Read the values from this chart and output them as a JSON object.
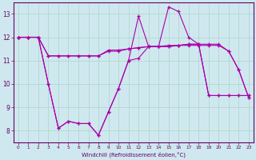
{
  "xlabel": "Windchill (Refroidissement éolien,°C)",
  "background_color": "#cfe8ef",
  "grid_color": "#b0d8cc",
  "line_color": "#aa00aa",
  "xlim": [
    -0.5,
    23.5
  ],
  "ylim": [
    7.5,
    13.5
  ],
  "xticks": [
    0,
    1,
    2,
    3,
    4,
    5,
    6,
    7,
    8,
    9,
    10,
    11,
    12,
    13,
    14,
    15,
    16,
    17,
    18,
    19,
    20,
    21,
    22,
    23
  ],
  "yticks": [
    8,
    9,
    10,
    11,
    12,
    13
  ],
  "series": [
    [
      12.0,
      12.0,
      12.0,
      11.2,
      11.2,
      11.2,
      11.2,
      11.2,
      11.2,
      11.4,
      11.4,
      11.5,
      11.55,
      11.6,
      11.6,
      11.6,
      11.65,
      11.65,
      11.65,
      11.65,
      11.65,
      11.4,
      10.6,
      9.4
    ],
    [
      12.0,
      12.0,
      12.0,
      11.2,
      11.2,
      11.2,
      11.2,
      11.2,
      11.2,
      11.45,
      11.45,
      11.5,
      11.55,
      11.6,
      11.6,
      11.6,
      11.65,
      11.7,
      11.7,
      11.7,
      11.7,
      11.4,
      10.6,
      9.4
    ],
    [
      12.0,
      12.0,
      12.0,
      10.0,
      8.1,
      8.4,
      8.3,
      8.3,
      7.8,
      8.8,
      9.8,
      11.0,
      12.9,
      11.6,
      11.6,
      13.3,
      13.1,
      12.0,
      11.7,
      9.5,
      9.5,
      9.5,
      9.5,
      9.5
    ],
    [
      12.0,
      12.0,
      12.0,
      10.0,
      8.1,
      8.4,
      8.3,
      8.3,
      7.8,
      8.8,
      9.8,
      11.0,
      11.1,
      11.6,
      11.6,
      11.65,
      11.65,
      11.7,
      11.7,
      9.5,
      9.5,
      9.5,
      9.5,
      9.5
    ]
  ]
}
